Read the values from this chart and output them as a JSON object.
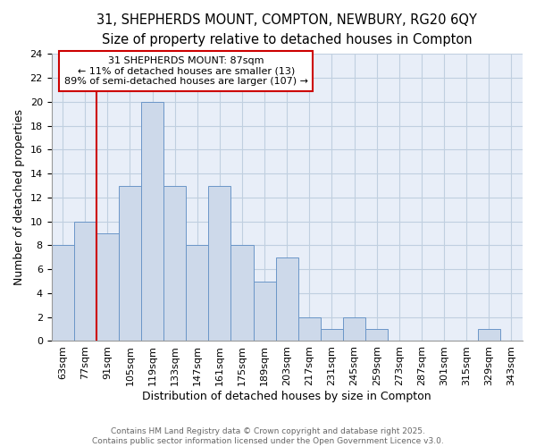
{
  "title1": "31, SHEPHERDS MOUNT, COMPTON, NEWBURY, RG20 6QY",
  "title2": "Size of property relative to detached houses in Compton",
  "xlabel": "Distribution of detached houses by size in Compton",
  "ylabel": "Number of detached properties",
  "annotation_line1": "31 SHEPHERDS MOUNT: 87sqm",
  "annotation_line2": "← 11% of detached houses are smaller (13)",
  "annotation_line3": "89% of semi-detached houses are larger (107) →",
  "bar_color": "#cdd9ea",
  "bar_edge_color": "#6b96c8",
  "red_line_color": "#cc0000",
  "annotation_box_edge_color": "#cc0000",
  "background_color": "#e8eef8",
  "fig_background": "#ffffff",
  "categories": [
    "63sqm",
    "77sqm",
    "91sqm",
    "105sqm",
    "119sqm",
    "133sqm",
    "147sqm",
    "161sqm",
    "175sqm",
    "189sqm",
    "203sqm",
    "217sqm",
    "231sqm",
    "245sqm",
    "259sqm",
    "273sqm",
    "287sqm",
    "301sqm",
    "315sqm",
    "329sqm",
    "343sqm"
  ],
  "bin_edges": [
    63,
    77,
    91,
    105,
    119,
    133,
    147,
    161,
    175,
    189,
    203,
    217,
    231,
    245,
    259,
    273,
    287,
    301,
    315,
    329,
    343,
    357
  ],
  "values": [
    8,
    10,
    9,
    13,
    20,
    13,
    8,
    13,
    8,
    5,
    7,
    2,
    1,
    2,
    1,
    0,
    0,
    0,
    0,
    1,
    0
  ],
  "ylim": [
    0,
    24
  ],
  "yticks": [
    0,
    2,
    4,
    6,
    8,
    10,
    12,
    14,
    16,
    18,
    20,
    22,
    24
  ],
  "footnote": "Contains HM Land Registry data © Crown copyright and database right 2025.\nContains public sector information licensed under the Open Government Licence v3.0.",
  "grid_color": "#c0cfe0",
  "title_fontsize": 10.5,
  "subtitle_fontsize": 9.5,
  "axis_label_fontsize": 9,
  "tick_fontsize": 8,
  "annotation_fontsize": 8,
  "footnote_fontsize": 6.5,
  "footnote_color": "#666666"
}
